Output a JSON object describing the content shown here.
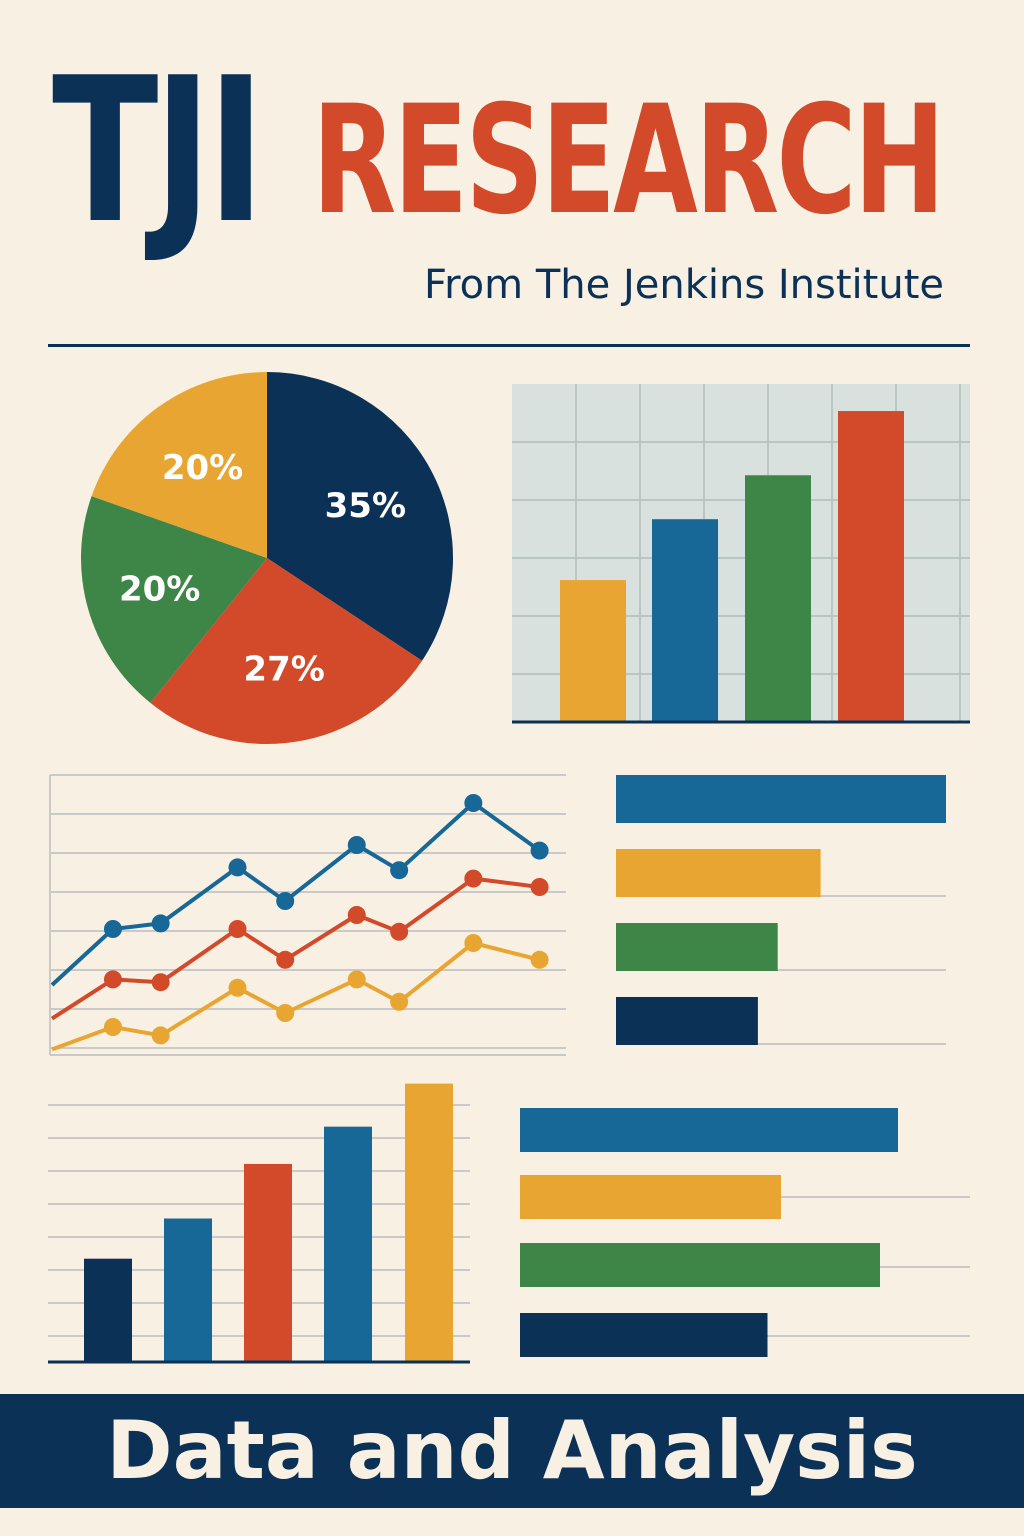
{
  "header": {
    "title_left": "TJI",
    "title_right": "RESEARCH",
    "subtitle": "From The Jenkins Institute"
  },
  "footer": {
    "label": "Data and Analysis"
  },
  "colors": {
    "navy": "#0c3156",
    "red": "#d24a2a",
    "yellow": "#e9a532",
    "green": "#3e8548",
    "blue": "#176797",
    "grid": "#c9c9c9",
    "plot_bg": "#d8e1dd"
  },
  "chart_data": [
    {
      "type": "pie",
      "slices": [
        {
          "label": "35%",
          "value": 35,
          "color": "#0c3156"
        },
        {
          "label": "27%",
          "value": 27,
          "color": "#d24a2a"
        },
        {
          "label": "20%",
          "value": 20,
          "color": "#3e8548"
        },
        {
          "label": "20%",
          "value": 20,
          "color": "#e9a532"
        }
      ]
    },
    {
      "type": "bar",
      "grid": true,
      "ylim": [
        0,
        100
      ],
      "values": [
        42,
        60,
        73,
        92
      ],
      "colors": [
        "#e9a532",
        "#176797",
        "#3e8548",
        "#d24a2a"
      ]
    },
    {
      "type": "line",
      "grid": true,
      "ylim": [
        0,
        100
      ],
      "x": [
        0,
        1,
        2,
        3,
        4,
        5,
        6,
        7,
        8,
        9,
        10
      ],
      "series": [
        {
          "color": "#176797",
          "values": [
            25,
            45,
            47,
            67,
            55,
            75,
            66,
            90,
            73
          ],
          "x": [
            0,
            1.15,
            2.05,
            3.5,
            4.4,
            5.75,
            6.55,
            7.95,
            9.2
          ]
        },
        {
          "color": "#d24a2a",
          "values": [
            13,
            27,
            26,
            45,
            34,
            50,
            44,
            63,
            60
          ],
          "x": [
            0,
            1.15,
            2.05,
            3.5,
            4.4,
            5.75,
            6.55,
            7.95,
            9.2
          ]
        },
        {
          "color": "#e9a532",
          "values": [
            2,
            10,
            7,
            24,
            15,
            27,
            19,
            40,
            34
          ],
          "x": [
            0,
            1.15,
            2.05,
            3.5,
            4.4,
            5.75,
            6.55,
            7.95,
            9.2
          ]
        }
      ]
    },
    {
      "type": "bar",
      "orientation": "horizontal",
      "grid": true,
      "values": [
        100,
        62,
        49,
        43
      ],
      "colors": [
        "#176797",
        "#e9a532",
        "#3e8548",
        "#0c3156"
      ]
    },
    {
      "type": "bar",
      "grid": true,
      "ylim": [
        0,
        100
      ],
      "values": [
        36,
        50,
        69,
        82,
        97
      ],
      "colors": [
        "#0c3156",
        "#176797",
        "#d24a2a",
        "#176797",
        "#e9a532"
      ]
    },
    {
      "type": "bar",
      "orientation": "horizontal",
      "grid": true,
      "values": [
        84,
        58,
        80,
        55
      ],
      "colors": [
        "#176797",
        "#e9a532",
        "#3e8548",
        "#0c3156"
      ]
    }
  ]
}
